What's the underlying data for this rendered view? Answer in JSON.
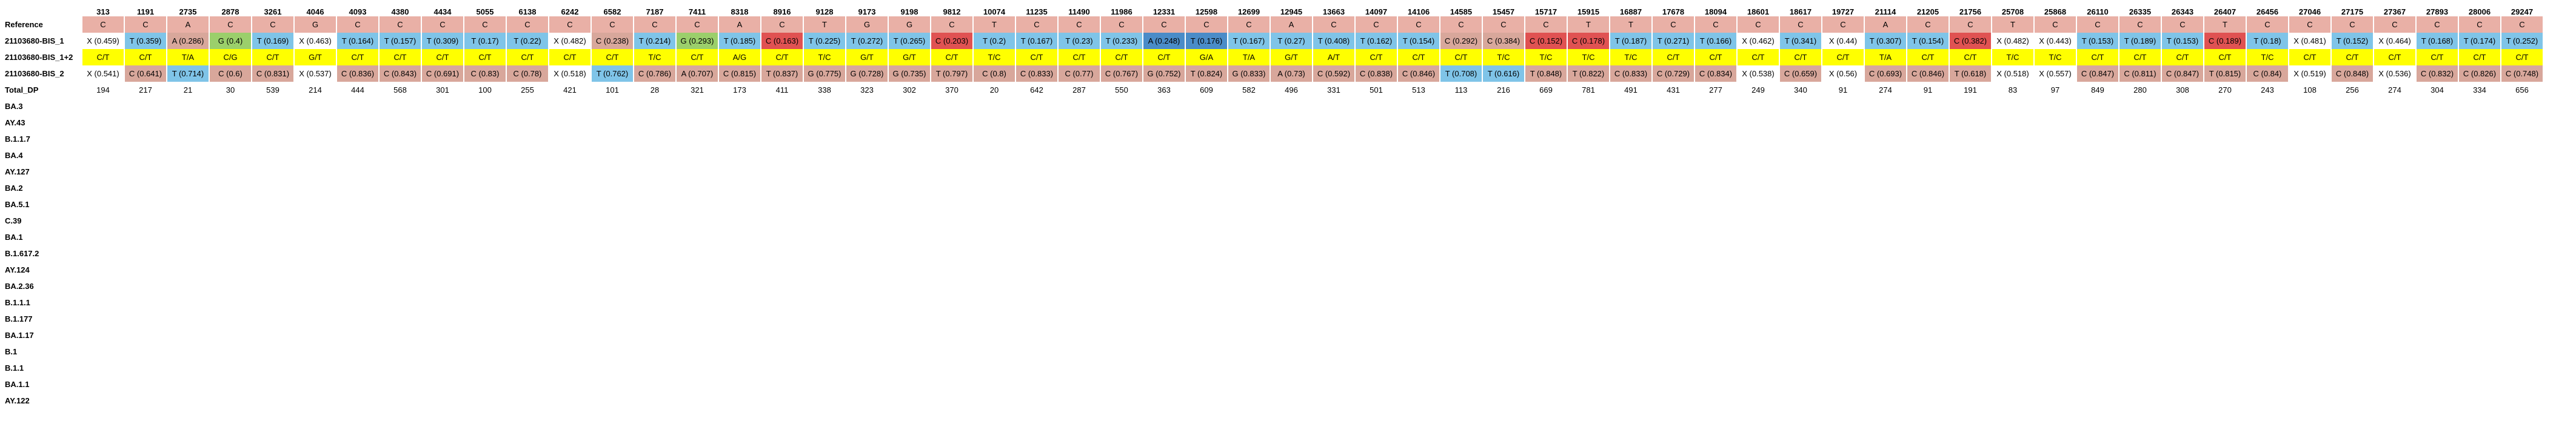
{
  "positions": [
    "313",
    "1191",
    "2735",
    "2878",
    "3261",
    "4046",
    "4093",
    "4380",
    "4434",
    "5055",
    "6138",
    "6242",
    "6582",
    "7187",
    "7411",
    "8318",
    "8916",
    "9128",
    "9173",
    "9198",
    "9812",
    "10074",
    "11235",
    "11490",
    "11986",
    "12331",
    "12598",
    "12699",
    "12945",
    "13663",
    "14097",
    "14106",
    "14585",
    "15457",
    "15717",
    "15915",
    "16887",
    "17678",
    "18094",
    "18601",
    "18617",
    "19727",
    "21114",
    "21205",
    "21756",
    "25708",
    "25868",
    "26110",
    "26335",
    "26343",
    "26407",
    "26456",
    "27046",
    "27175",
    "27367",
    "27893",
    "28006",
    "29247"
  ],
  "reference": {
    "label": "Reference",
    "values": [
      "C",
      "C",
      "A",
      "C",
      "C",
      "G",
      "C",
      "C",
      "C",
      "C",
      "C",
      "C",
      "C",
      "C",
      "C",
      "A",
      "C",
      "T",
      "G",
      "G",
      "C",
      "T",
      "C",
      "C",
      "C",
      "C",
      "C",
      "C",
      "A",
      "C",
      "C",
      "C",
      "C",
      "C",
      "C",
      "T",
      "T",
      "C",
      "C",
      "C",
      "C",
      "C",
      "A",
      "C",
      "C",
      "T",
      "C",
      "C",
      "C",
      "C",
      "T",
      "C",
      "C",
      "C",
      "C",
      "C",
      "C",
      "C"
    ]
  },
  "sample1": {
    "label": "21103680-BIS_1",
    "cells": [
      {
        "t": "X (0.459)",
        "c": "X"
      },
      {
        "t": "T (0.359)",
        "c": "T"
      },
      {
        "t": "A (0.286)",
        "c": "A"
      },
      {
        "t": "G (0.4)",
        "c": "G"
      },
      {
        "t": "T (0.169)",
        "c": "T"
      },
      {
        "t": "X (0.463)",
        "c": "X"
      },
      {
        "t": "T (0.164)",
        "c": "T"
      },
      {
        "t": "T (0.157)",
        "c": "T"
      },
      {
        "t": "T (0.309)",
        "c": "T"
      },
      {
        "t": "T (0.17)",
        "c": "T"
      },
      {
        "t": "T (0.22)",
        "c": "T"
      },
      {
        "t": "X (0.482)",
        "c": "X"
      },
      {
        "t": "C (0.238)",
        "c": "C"
      },
      {
        "t": "T (0.214)",
        "c": "T"
      },
      {
        "t": "G (0.293)",
        "c": "G"
      },
      {
        "t": "T (0.185)",
        "c": "T"
      },
      {
        "t": "C (0.163)",
        "c": "Cred"
      },
      {
        "t": "T (0.225)",
        "c": "T"
      },
      {
        "t": "T (0.272)",
        "c": "T"
      },
      {
        "t": "T (0.265)",
        "c": "T"
      },
      {
        "t": "C (0.203)",
        "c": "Cred"
      },
      {
        "t": "T (0.2)",
        "c": "T"
      },
      {
        "t": "T (0.167)",
        "c": "T"
      },
      {
        "t": "T (0.23)",
        "c": "T"
      },
      {
        "t": "T (0.233)",
        "c": "T"
      },
      {
        "t": "A (0.248)",
        "c": "Adark"
      },
      {
        "t": "T (0.176)",
        "c": "Tdark"
      },
      {
        "t": "T (0.167)",
        "c": "T"
      },
      {
        "t": "T (0.27)",
        "c": "T"
      },
      {
        "t": "T (0.408)",
        "c": "T"
      },
      {
        "t": "T (0.162)",
        "c": "T"
      },
      {
        "t": "T (0.154)",
        "c": "T"
      },
      {
        "t": "C (0.292)",
        "c": "C"
      },
      {
        "t": "C (0.384)",
        "c": "C"
      },
      {
        "t": "C (0.152)",
        "c": "Cred"
      },
      {
        "t": "C (0.178)",
        "c": "Cred"
      },
      {
        "t": "T (0.187)",
        "c": "T"
      },
      {
        "t": "T (0.271)",
        "c": "T"
      },
      {
        "t": "T (0.166)",
        "c": "T"
      },
      {
        "t": "X (0.462)",
        "c": "X"
      },
      {
        "t": "T (0.341)",
        "c": "T"
      },
      {
        "t": "X (0.44)",
        "c": "X"
      },
      {
        "t": "T (0.307)",
        "c": "T"
      },
      {
        "t": "T (0.154)",
        "c": "T"
      },
      {
        "t": "C (0.382)",
        "c": "Cred"
      },
      {
        "t": "X (0.482)",
        "c": "X"
      },
      {
        "t": "X (0.443)",
        "c": "X"
      },
      {
        "t": "T (0.153)",
        "c": "T"
      },
      {
        "t": "T (0.189)",
        "c": "T"
      },
      {
        "t": "T (0.153)",
        "c": "T"
      },
      {
        "t": "C (0.189)",
        "c": "Cred"
      },
      {
        "t": "T (0.18)",
        "c": "T"
      },
      {
        "t": "X (0.481)",
        "c": "X"
      },
      {
        "t": "T (0.152)",
        "c": "T"
      },
      {
        "t": "X (0.464)",
        "c": "X"
      },
      {
        "t": "T (0.168)",
        "c": "T"
      },
      {
        "t": "T (0.174)",
        "c": "T"
      },
      {
        "t": "T (0.252)",
        "c": "T"
      }
    ]
  },
  "sample12": {
    "label": "21103680-BIS_1+2",
    "values": [
      "C/T",
      "C/T",
      "T/A",
      "C/G",
      "C/T",
      "G/T",
      "C/T",
      "C/T",
      "C/T",
      "C/T",
      "C/T",
      "C/T",
      "C/T",
      "T/C",
      "C/T",
      "A/G",
      "C/T",
      "T/C",
      "G/T",
      "G/T",
      "C/T",
      "T/C",
      "C/T",
      "C/T",
      "C/T",
      "C/T",
      "G/A",
      "T/A",
      "G/T",
      "A/T",
      "C/T",
      "C/T",
      "C/T",
      "T/C",
      "T/C",
      "T/C",
      "T/C",
      "C/T",
      "C/T",
      "C/T",
      "C/T",
      "C/T",
      "T/A",
      "C/T",
      "C/T",
      "T/C",
      "T/C",
      "C/T",
      "C/T",
      "C/T",
      "C/T",
      "T/C",
      "C/T",
      "C/T",
      "C/T",
      "C/T",
      "C/T",
      "C/T"
    ]
  },
  "sample2": {
    "label": "21103680-BIS_2",
    "cells": [
      {
        "t": "X (0.541)",
        "c": "X"
      },
      {
        "t": "C (0.641)",
        "c": "C"
      },
      {
        "t": "T (0.714)",
        "c": "T"
      },
      {
        "t": "C (0.6)",
        "c": "C"
      },
      {
        "t": "C (0.831)",
        "c": "C"
      },
      {
        "t": "X (0.537)",
        "c": "X"
      },
      {
        "t": "C (0.836)",
        "c": "C"
      },
      {
        "t": "C (0.843)",
        "c": "C"
      },
      {
        "t": "C (0.691)",
        "c": "C"
      },
      {
        "t": "C (0.83)",
        "c": "C"
      },
      {
        "t": "C (0.78)",
        "c": "C"
      },
      {
        "t": "X (0.518)",
        "c": "X"
      },
      {
        "t": "T (0.762)",
        "c": "T"
      },
      {
        "t": "C (0.786)",
        "c": "C"
      },
      {
        "t": "A (0.707)",
        "c": "A"
      },
      {
        "t": "C (0.815)",
        "c": "C"
      },
      {
        "t": "T (0.837)",
        "c": "C"
      },
      {
        "t": "G (0.775)",
        "c": "C"
      },
      {
        "t": "G (0.728)",
        "c": "C"
      },
      {
        "t": "G (0.735)",
        "c": "C"
      },
      {
        "t": "T (0.797)",
        "c": "C"
      },
      {
        "t": "C (0.8)",
        "c": "C"
      },
      {
        "t": "C (0.833)",
        "c": "C"
      },
      {
        "t": "C (0.77)",
        "c": "C"
      },
      {
        "t": "C (0.767)",
        "c": "C"
      },
      {
        "t": "G (0.752)",
        "c": "C"
      },
      {
        "t": "T (0.824)",
        "c": "C"
      },
      {
        "t": "G (0.833)",
        "c": "C"
      },
      {
        "t": "A (0.73)",
        "c": "C"
      },
      {
        "t": "C (0.592)",
        "c": "C"
      },
      {
        "t": "C (0.838)",
        "c": "C"
      },
      {
        "t": "C (0.846)",
        "c": "C"
      },
      {
        "t": "T (0.708)",
        "c": "T"
      },
      {
        "t": "T (0.616)",
        "c": "T"
      },
      {
        "t": "T (0.848)",
        "c": "C"
      },
      {
        "t": "T (0.822)",
        "c": "C"
      },
      {
        "t": "C (0.833)",
        "c": "C"
      },
      {
        "t": "C (0.729)",
        "c": "C"
      },
      {
        "t": "C (0.834)",
        "c": "C"
      },
      {
        "t": "X (0.538)",
        "c": "X"
      },
      {
        "t": "C (0.659)",
        "c": "C"
      },
      {
        "t": "X (0.56)",
        "c": "X"
      },
      {
        "t": "C (0.693)",
        "c": "C"
      },
      {
        "t": "C (0.846)",
        "c": "C"
      },
      {
        "t": "T (0.618)",
        "c": "C"
      },
      {
        "t": "X (0.518)",
        "c": "X"
      },
      {
        "t": "X (0.557)",
        "c": "X"
      },
      {
        "t": "C (0.847)",
        "c": "C"
      },
      {
        "t": "C (0.811)",
        "c": "C"
      },
      {
        "t": "C (0.847)",
        "c": "C"
      },
      {
        "t": "T (0.815)",
        "c": "C"
      },
      {
        "t": "C (0.84)",
        "c": "C"
      },
      {
        "t": "X (0.519)",
        "c": "X"
      },
      {
        "t": "C (0.848)",
        "c": "C"
      },
      {
        "t": "X (0.536)",
        "c": "X"
      },
      {
        "t": "C (0.832)",
        "c": "C"
      },
      {
        "t": "C (0.826)",
        "c": "C"
      },
      {
        "t": "C (0.748)",
        "c": "C"
      }
    ]
  },
  "total_dp": {
    "label": "Total_DP",
    "values": [
      "194",
      "217",
      "21",
      "30",
      "539",
      "214",
      "444",
      "568",
      "301",
      "100",
      "255",
      "421",
      "101",
      "28",
      "321",
      "173",
      "411",
      "338",
      "323",
      "302",
      "370",
      "20",
      "642",
      "287",
      "550",
      "363",
      "609",
      "582",
      "496",
      "331",
      "501",
      "513",
      "113",
      "216",
      "669",
      "781",
      "491",
      "431",
      "277",
      "249",
      "340",
      "91",
      "274",
      "91",
      "191",
      "83",
      "97",
      "849",
      "280",
      "308",
      "270",
      "243",
      "108",
      "256",
      "274",
      "304",
      "334",
      "656"
    ]
  },
  "lineages": [
    "BA.3",
    "AY.43",
    "B.1.1.7",
    "BA.4",
    "AY.127",
    "BA.2",
    "BA.5.1",
    "C.39",
    "BA.1",
    "B.1.617.2",
    "AY.124",
    "BA.2.36",
    "B.1.1.1",
    "B.1.177",
    "BA.1.17",
    "B.1",
    "B.1.1",
    "BA.1.1",
    "AY.122"
  ]
}
